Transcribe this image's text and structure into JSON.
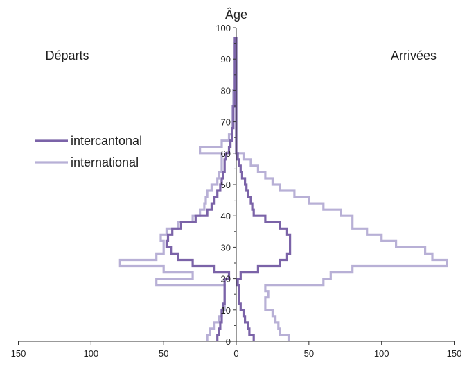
{
  "chart_data": {
    "type": "line",
    "title": "",
    "ylabel": "Âge",
    "xlabel": "",
    "xlim": [
      -150,
      150
    ],
    "ylim": [
      0,
      100
    ],
    "x_ticks": [
      -150,
      -100,
      -50,
      0,
      50,
      100,
      150
    ],
    "x_tick_labels": [
      "150",
      "100",
      "50",
      "0",
      "50",
      "100",
      "150"
    ],
    "y_ticks": [
      0,
      10,
      20,
      30,
      40,
      50,
      60,
      70,
      80,
      90,
      100
    ],
    "y_tick_labels": [
      "0",
      "10",
      "20",
      "30",
      "40",
      "50",
      "60",
      "70",
      "80",
      "90",
      "100"
    ],
    "side_labels": {
      "left": "Départs",
      "right": "Arrivées"
    },
    "legend": {
      "position": "left",
      "entries": [
        "intercantonal",
        "international"
      ]
    },
    "grid": false,
    "series": [
      {
        "name": "intercantonal",
        "color": "#7b63a8",
        "ages": [
          0,
          2,
          4,
          6,
          8,
          10,
          12,
          14,
          16,
          18,
          20,
          22,
          24,
          26,
          28,
          30,
          32,
          34,
          36,
          38,
          40,
          42,
          44,
          46,
          48,
          50,
          52,
          54,
          56,
          58,
          60,
          62,
          64,
          66,
          68,
          70,
          75,
          80,
          85,
          90,
          95,
          97
        ],
        "departures": [
          13,
          12,
          11,
          10,
          10,
          9,
          8,
          8,
          8,
          8,
          5,
          15,
          30,
          40,
          45,
          48,
          47,
          44,
          38,
          28,
          20,
          17,
          15,
          13,
          11,
          10,
          9,
          8,
          8,
          7,
          5,
          4,
          3,
          3,
          2,
          2,
          1,
          1,
          1,
          1,
          1,
          1
        ],
        "arrivals": [
          12,
          9,
          8,
          6,
          5,
          3,
          2,
          2,
          2,
          1,
          3,
          15,
          30,
          35,
          37,
          37,
          37,
          35,
          30,
          20,
          12,
          11,
          10,
          8,
          7,
          6,
          4,
          3,
          2,
          1,
          0,
          0,
          0,
          0,
          0,
          0,
          0,
          0,
          0,
          0,
          0,
          0
        ]
      },
      {
        "name": "international",
        "color": "#b8b0d6",
        "ages": [
          0,
          2,
          4,
          6,
          8,
          10,
          12,
          14,
          16,
          18,
          20,
          22,
          24,
          26,
          28,
          30,
          32,
          34,
          36,
          38,
          40,
          42,
          44,
          46,
          48,
          50,
          52,
          54,
          56,
          58,
          60,
          62,
          64,
          66,
          68,
          70,
          75,
          80,
          85,
          90,
          95,
          97
        ],
        "departures": [
          20,
          18,
          15,
          12,
          10,
          8,
          8,
          8,
          8,
          55,
          30,
          50,
          80,
          55,
          50,
          50,
          52,
          48,
          40,
          30,
          25,
          22,
          21,
          20,
          17,
          13,
          12,
          10,
          10,
          10,
          25,
          10,
          5,
          3,
          3,
          3,
          2,
          1,
          1,
          1,
          0,
          0
        ],
        "arrivals": [
          36,
          30,
          29,
          27,
          25,
          20,
          20,
          22,
          20,
          60,
          65,
          80,
          145,
          135,
          130,
          110,
          100,
          90,
          80,
          80,
          72,
          60,
          50,
          40,
          30,
          25,
          20,
          15,
          10,
          5,
          0,
          0,
          0,
          0,
          0,
          0,
          0,
          0,
          0,
          0,
          0,
          0
        ]
      }
    ]
  }
}
